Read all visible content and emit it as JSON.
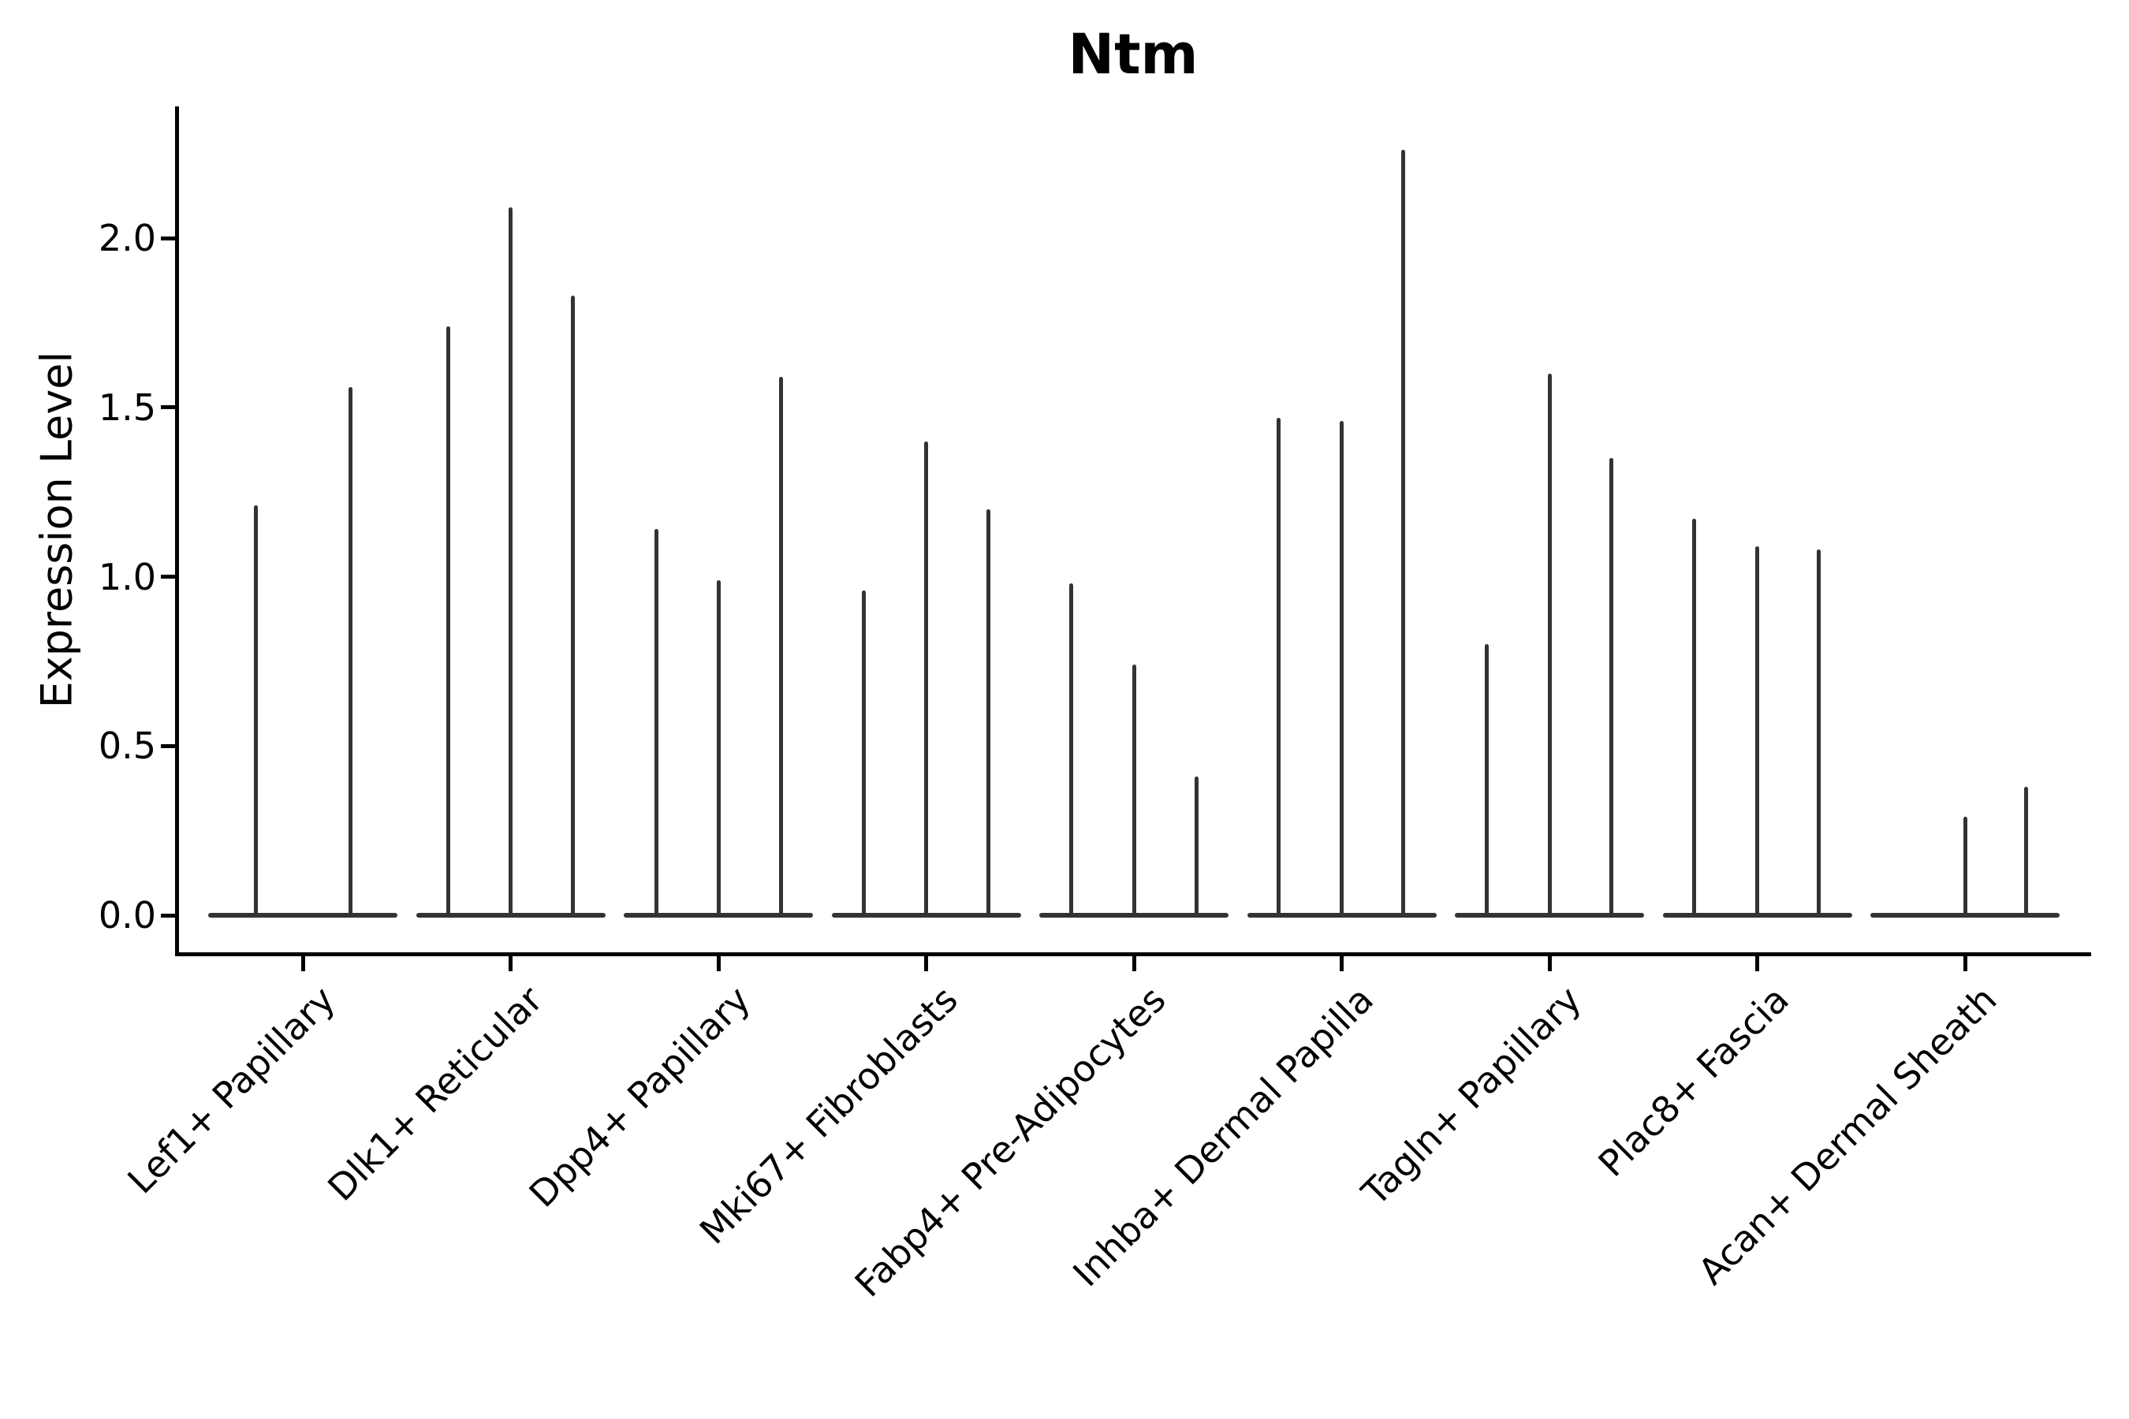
{
  "title": "Ntm",
  "ylabel": "Expression Level",
  "chart_data": {
    "type": "violin",
    "title": "Ntm",
    "xlabel": "",
    "ylabel": "Expression Level",
    "ylim": [
      -0.11,
      2.39
    ],
    "yticks": [
      0.0,
      0.5,
      1.0,
      1.5,
      2.0
    ],
    "ytick_labels": [
      "0.0",
      "0.5",
      "1.0",
      "1.5",
      "2.0"
    ],
    "grid": false,
    "legend": "none",
    "categories": [
      "Lef1+ Papillary",
      "Dlk1+ Reticular",
      "Dpp4+ Papillary",
      "Mki67+ Fibroblasts",
      "Fabp4+ Pre-Adipocytes",
      "Inhba+ Dermal Papilla",
      "Tagln+ Papillary",
      "Plac8+ Fascia",
      "Acan+ Dermal Sheath"
    ],
    "groups": [
      {
        "label": "Lef1+ Papillary",
        "violins": [
          {
            "offset": -60,
            "peak": 1.21
          },
          {
            "offset": 60,
            "peak": 1.56
          }
        ]
      },
      {
        "label": "Dlk1+ Reticular",
        "violins": [
          {
            "offset": -79,
            "peak": 1.74
          },
          {
            "offset": 0,
            "peak": 2.09
          },
          {
            "offset": 79,
            "peak": 1.83
          }
        ]
      },
      {
        "label": "Dpp4+ Papillary",
        "violins": [
          {
            "offset": -79,
            "peak": 1.14
          },
          {
            "offset": 0,
            "peak": 0.99
          },
          {
            "offset": 79,
            "peak": 1.59
          }
        ]
      },
      {
        "label": "Mki67+ Fibroblasts",
        "violins": [
          {
            "offset": -79,
            "peak": 0.96
          },
          {
            "offset": 0,
            "peak": 1.4
          },
          {
            "offset": 79,
            "peak": 1.2
          }
        ]
      },
      {
        "label": "Fabp4+ Pre-Adipocytes",
        "violins": [
          {
            "offset": -80,
            "peak": 0.98
          },
          {
            "offset": 0,
            "peak": 0.74
          },
          {
            "offset": 79,
            "peak": 0.41
          }
        ]
      },
      {
        "label": "Inhba+ Dermal Papilla",
        "violins": [
          {
            "offset": -80,
            "peak": 1.47
          },
          {
            "offset": 0,
            "peak": 1.46
          },
          {
            "offset": 78,
            "peak": 2.26
          }
        ]
      },
      {
        "label": "Tagln+ Papillary",
        "violins": [
          {
            "offset": -80,
            "peak": 0.8
          },
          {
            "offset": 0,
            "peak": 1.6
          },
          {
            "offset": 78,
            "peak": 1.35
          }
        ]
      },
      {
        "label": "Plac8+ Fascia",
        "violins": [
          {
            "offset": -80,
            "peak": 1.17
          },
          {
            "offset": 0,
            "peak": 1.09
          },
          {
            "offset": 78,
            "peak": 1.08
          }
        ]
      },
      {
        "label": "Acan+ Dermal Sheath",
        "violins": [
          {
            "offset": 0,
            "peak": 0.29
          },
          {
            "offset": 77,
            "peak": 0.38
          }
        ]
      }
    ],
    "colors": {
      "violin": "#333333",
      "axis": "#000000",
      "text": "#000000",
      "background": "#ffffff"
    }
  }
}
